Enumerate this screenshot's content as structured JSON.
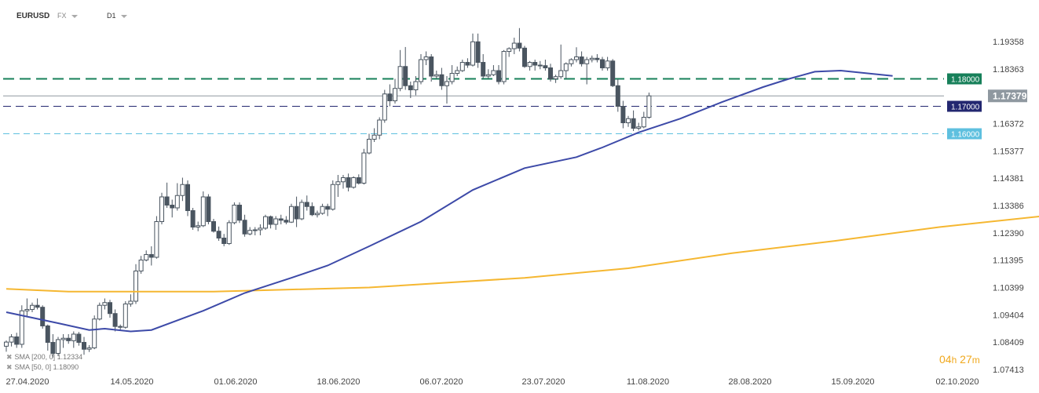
{
  "header": {
    "symbol": "EURUSD",
    "market": "FX",
    "timeframe": "D1"
  },
  "countdown": {
    "hours": "04",
    "h_unit": "h",
    "minutes": "27",
    "m_unit": "m"
  },
  "indicators": [
    {
      "label": "SMA",
      "params": "[200, 0]",
      "value": "1.12334",
      "color": "#f5b731"
    },
    {
      "label": "SMA",
      "params": "[50, 0]",
      "value": "1.18090",
      "color": "#3d4aa8"
    }
  ],
  "price_labels": {
    "current": "1.17379",
    "line1": "1.18000",
    "line2": "1.17000",
    "line3": "1.16000"
  },
  "colors": {
    "bull": "#ffffff",
    "bear": "#4a5560",
    "wick": "#4a5560",
    "sma50": "#3d4aa8",
    "sma200": "#f5b731",
    "level_green": "#17805a",
    "level_navy": "#232770",
    "level_cyan": "#5ec0df",
    "current": "#8f98a0"
  },
  "chart_data": {
    "type": "candlestick",
    "symbol": "EURUSD",
    "timeframe": "D1",
    "y_ticks": [
      "1.19358",
      "1.18363",
      "1.17368",
      "1.16372",
      "1.15377",
      "1.14381",
      "1.13386",
      "1.12390",
      "1.11395",
      "1.10399",
      "1.09404",
      "1.08409",
      "1.07413"
    ],
    "x_ticks": [
      "27.04.2020",
      "14.05.2020",
      "01.06.2020",
      "18.06.2020",
      "06.07.2020",
      "23.07.2020",
      "11.08.2020",
      "28.08.2020",
      "15.09.2020",
      "02.10.2020"
    ],
    "ylim": [
      1.0724,
      1.2005
    ],
    "start_date": "2020-04-27",
    "candles": [
      [
        1.0826,
        1.0847,
        1.0806,
        1.0841
      ],
      [
        1.0841,
        1.087,
        1.0825,
        1.086
      ],
      [
        1.086,
        1.0875,
        1.082,
        1.0833
      ],
      [
        1.0833,
        1.0975,
        1.082,
        1.0955
      ],
      [
        1.0955,
        1.1,
        1.0935,
        1.096
      ],
      [
        1.096,
        1.0985,
        1.095,
        1.0975
      ],
      [
        1.0975,
        1.1,
        1.096,
        1.0968
      ],
      [
        1.0968,
        1.0975,
        1.089,
        1.09
      ],
      [
        1.09,
        1.0905,
        1.081,
        1.084
      ],
      [
        1.084,
        1.087,
        1.0785,
        1.08
      ],
      [
        1.08,
        1.086,
        1.079,
        1.085
      ],
      [
        1.085,
        1.087,
        1.082,
        1.0855
      ],
      [
        1.0855,
        1.087,
        1.0835,
        1.0846
      ],
      [
        1.0846,
        1.088,
        1.082,
        1.087
      ],
      [
        1.087,
        1.0878,
        1.0828,
        1.084
      ],
      [
        1.084,
        1.086,
        1.0795,
        1.0815
      ],
      [
        1.0815,
        1.083,
        1.0805,
        1.082
      ],
      [
        1.082,
        1.0938,
        1.0815,
        1.0925
      ],
      [
        1.0925,
        1.0985,
        1.092,
        1.0975
      ],
      [
        1.0975,
        1.1,
        1.096,
        1.0985
      ],
      [
        1.0985,
        1.0995,
        1.093,
        1.0945
      ],
      [
        1.0945,
        1.096,
        1.088,
        1.0898
      ],
      [
        1.0898,
        1.0905,
        1.0885,
        1.0895
      ],
      [
        1.0895,
        1.099,
        1.089,
        1.098
      ],
      [
        1.098,
        1.1015,
        1.097,
        1.099
      ],
      [
        1.099,
        1.1125,
        1.098,
        1.11
      ],
      [
        1.11,
        1.1155,
        1.109,
        1.114
      ],
      [
        1.114,
        1.1175,
        1.1135,
        1.116
      ],
      [
        1.116,
        1.119,
        1.112,
        1.115
      ],
      [
        1.115,
        1.13,
        1.1145,
        1.128
      ],
      [
        1.128,
        1.1385,
        1.127,
        1.137
      ],
      [
        1.137,
        1.1422,
        1.133,
        1.134
      ],
      [
        1.134,
        1.136,
        1.1295,
        1.133
      ],
      [
        1.133,
        1.142,
        1.132,
        1.1375
      ],
      [
        1.1375,
        1.144,
        1.1355,
        1.1415
      ],
      [
        1.1415,
        1.143,
        1.13,
        1.132
      ],
      [
        1.132,
        1.133,
        1.125,
        1.126
      ],
      [
        1.126,
        1.128,
        1.1245,
        1.1265
      ],
      [
        1.1265,
        1.139,
        1.126,
        1.137
      ],
      [
        1.137,
        1.138,
        1.127,
        1.128
      ],
      [
        1.128,
        1.129,
        1.124,
        1.1245
      ],
      [
        1.1245,
        1.1262,
        1.121,
        1.122
      ],
      [
        1.122,
        1.1235,
        1.119,
        1.12
      ],
      [
        1.12,
        1.1285,
        1.1195,
        1.1276
      ],
      [
        1.1276,
        1.135,
        1.127,
        1.134
      ],
      [
        1.134,
        1.135,
        1.1275,
        1.1285
      ],
      [
        1.1285,
        1.1305,
        1.1225,
        1.1235
      ],
      [
        1.1235,
        1.126,
        1.123,
        1.1248
      ],
      [
        1.1248,
        1.126,
        1.123,
        1.125
      ],
      [
        1.125,
        1.127,
        1.123,
        1.1256
      ],
      [
        1.1256,
        1.1305,
        1.125,
        1.1298
      ],
      [
        1.1298,
        1.1302,
        1.1255,
        1.127
      ],
      [
        1.127,
        1.13,
        1.125,
        1.129
      ],
      [
        1.129,
        1.1305,
        1.127,
        1.1285
      ],
      [
        1.1285,
        1.13,
        1.127,
        1.1278
      ],
      [
        1.1278,
        1.1345,
        1.1275,
        1.1335
      ],
      [
        1.1335,
        1.1371,
        1.126,
        1.129
      ],
      [
        1.129,
        1.136,
        1.1285,
        1.135
      ],
      [
        1.135,
        1.1375,
        1.132,
        1.1335
      ],
      [
        1.1335,
        1.135,
        1.13,
        1.1305
      ],
      [
        1.1305,
        1.132,
        1.1295,
        1.131
      ],
      [
        1.131,
        1.1345,
        1.1305,
        1.1335
      ],
      [
        1.1335,
        1.1345,
        1.13,
        1.1325
      ],
      [
        1.1325,
        1.143,
        1.132,
        1.1415
      ],
      [
        1.1415,
        1.145,
        1.137,
        1.1425
      ],
      [
        1.1425,
        1.145,
        1.14,
        1.144
      ],
      [
        1.144,
        1.1455,
        1.139,
        1.1405
      ],
      [
        1.1405,
        1.1445,
        1.14,
        1.144
      ],
      [
        1.144,
        1.1452,
        1.1415,
        1.142
      ],
      [
        1.142,
        1.1545,
        1.1415,
        1.153
      ],
      [
        1.153,
        1.16,
        1.1525,
        1.158
      ],
      [
        1.158,
        1.162,
        1.157,
        1.1595
      ],
      [
        1.1595,
        1.166,
        1.158,
        1.165
      ],
      [
        1.165,
        1.176,
        1.164,
        1.1745
      ],
      [
        1.1745,
        1.178,
        1.17,
        1.172
      ],
      [
        1.172,
        1.18,
        1.171,
        1.1765
      ],
      [
        1.1765,
        1.1905,
        1.1755,
        1.1845
      ],
      [
        1.1845,
        1.1916,
        1.176,
        1.1775
      ],
      [
        1.1775,
        1.179,
        1.173,
        1.176
      ],
      [
        1.176,
        1.181,
        1.174,
        1.179
      ],
      [
        1.179,
        1.189,
        1.178,
        1.187
      ],
      [
        1.187,
        1.19,
        1.185,
        1.188
      ],
      [
        1.188,
        1.189,
        1.179,
        1.181
      ],
      [
        1.181,
        1.183,
        1.18,
        1.1815
      ],
      [
        1.1815,
        1.184,
        1.176,
        1.1775
      ],
      [
        1.1775,
        1.181,
        1.171,
        1.179
      ],
      [
        1.179,
        1.185,
        1.178,
        1.182
      ],
      [
        1.182,
        1.1845,
        1.181,
        1.183
      ],
      [
        1.183,
        1.187,
        1.1825,
        1.186
      ],
      [
        1.186,
        1.1875,
        1.184,
        1.185
      ],
      [
        1.185,
        1.1965,
        1.1845,
        1.1935
      ],
      [
        1.1935,
        1.1965,
        1.184,
        1.186
      ],
      [
        1.186,
        1.189,
        1.18,
        1.181
      ],
      [
        1.181,
        1.1835,
        1.18,
        1.1815
      ],
      [
        1.1815,
        1.185,
        1.181,
        1.183
      ],
      [
        1.183,
        1.185,
        1.178,
        1.179
      ],
      [
        1.179,
        1.1905,
        1.178,
        1.19
      ],
      [
        1.19,
        1.1915,
        1.188,
        1.191
      ],
      [
        1.191,
        1.195,
        1.189,
        1.193
      ],
      [
        1.193,
        1.1985,
        1.19,
        1.1912
      ],
      [
        1.1912,
        1.192,
        1.184,
        1.1845
      ],
      [
        1.1845,
        1.1865,
        1.183,
        1.186
      ],
      [
        1.186,
        1.187,
        1.183,
        1.185
      ],
      [
        1.185,
        1.1865,
        1.1835,
        1.1848
      ],
      [
        1.1848,
        1.187,
        1.183,
        1.184
      ],
      [
        1.184,
        1.1855,
        1.179,
        1.18
      ],
      [
        1.18,
        1.1815,
        1.1785,
        1.1808
      ],
      [
        1.1808,
        1.1925,
        1.18,
        1.183
      ],
      [
        1.183,
        1.186,
        1.18,
        1.1855
      ],
      [
        1.1855,
        1.1875,
        1.1845,
        1.187
      ],
      [
        1.187,
        1.1915,
        1.186,
        1.188
      ],
      [
        1.188,
        1.19,
        1.1845,
        1.1855
      ],
      [
        1.1855,
        1.188,
        1.178,
        1.187
      ],
      [
        1.187,
        1.1885,
        1.186,
        1.1875
      ],
      [
        1.1875,
        1.189,
        1.186,
        1.187
      ],
      [
        1.187,
        1.188,
        1.183,
        1.184
      ],
      [
        1.184,
        1.188,
        1.183,
        1.1865
      ],
      [
        1.1865,
        1.1872,
        1.177,
        1.1775
      ],
      [
        1.1775,
        1.18,
        1.168,
        1.17
      ],
      [
        1.17,
        1.172,
        1.162,
        1.164
      ],
      [
        1.164,
        1.1665,
        1.1625,
        1.1655
      ],
      [
        1.1655,
        1.1685,
        1.161,
        1.162
      ],
      [
        1.162,
        1.164,
        1.1612,
        1.1625
      ],
      [
        1.1625,
        1.168,
        1.162,
        1.166
      ],
      [
        1.166,
        1.175,
        1.1655,
        1.1738
      ]
    ],
    "sma50": [
      [
        0,
        1.095
      ],
      [
        10,
        1.091
      ],
      [
        16,
        1.0885
      ],
      [
        19,
        1.089
      ],
      [
        24,
        1.088
      ],
      [
        28,
        1.0885
      ],
      [
        38,
        1.0955
      ],
      [
        46,
        1.102
      ],
      [
        55,
        1.1075
      ],
      [
        62,
        1.112
      ],
      [
        70,
        1.119
      ],
      [
        80,
        1.128
      ],
      [
        90,
        1.1395
      ],
      [
        100,
        1.1475
      ],
      [
        110,
        1.1515
      ],
      [
        115,
        1.155
      ],
      [
        122,
        1.1605
      ],
      [
        130,
        1.1655
      ],
      [
        138,
        1.1715
      ],
      [
        146,
        1.177
      ],
      [
        151,
        1.18
      ],
      [
        156,
        1.1826
      ],
      [
        161,
        1.183
      ],
      [
        171,
        1.1811
      ]
    ],
    "sma200": [
      [
        0,
        1.1035
      ],
      [
        12,
        1.1025
      ],
      [
        40,
        1.1025
      ],
      [
        70,
        1.104
      ],
      [
        100,
        1.1075
      ],
      [
        120,
        1.111
      ],
      [
        140,
        1.1165
      ],
      [
        160,
        1.121
      ],
      [
        180,
        1.126
      ],
      [
        200,
        1.13
      ],
      [
        220,
        1.1328
      ],
      [
        232,
        1.1345
      ]
    ],
    "levels": [
      {
        "value": 1.18,
        "label": "1.18000"
      },
      {
        "value": 1.17,
        "label": "1.17000"
      },
      {
        "value": 1.16,
        "label": "1.16000"
      }
    ],
    "current_price": 1.17379,
    "grid": false,
    "legend": "bottom-left"
  }
}
